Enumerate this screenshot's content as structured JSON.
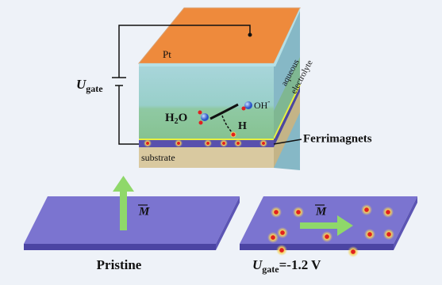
{
  "labels": {
    "pt": "Pt",
    "electrolyte_line1": "aqueous",
    "electrolyte_line2": "electrolyte",
    "gate_voltage": {
      "symbol": "U",
      "sub": "gate"
    },
    "water": {
      "h": "H",
      "sub": "2",
      "o": "O"
    },
    "hydroxide": {
      "text": "OH",
      "sup": "-"
    },
    "hydrogen": "H",
    "ferrimagnets": "Ferrimagnets",
    "substrate": "substrate",
    "magnetization_left": "M",
    "magnetization_right": "M",
    "pristine": "Pristine",
    "gated_state": {
      "symbol": "U",
      "sub": "gate",
      "rest": "=-1.2 V"
    }
  }
}
